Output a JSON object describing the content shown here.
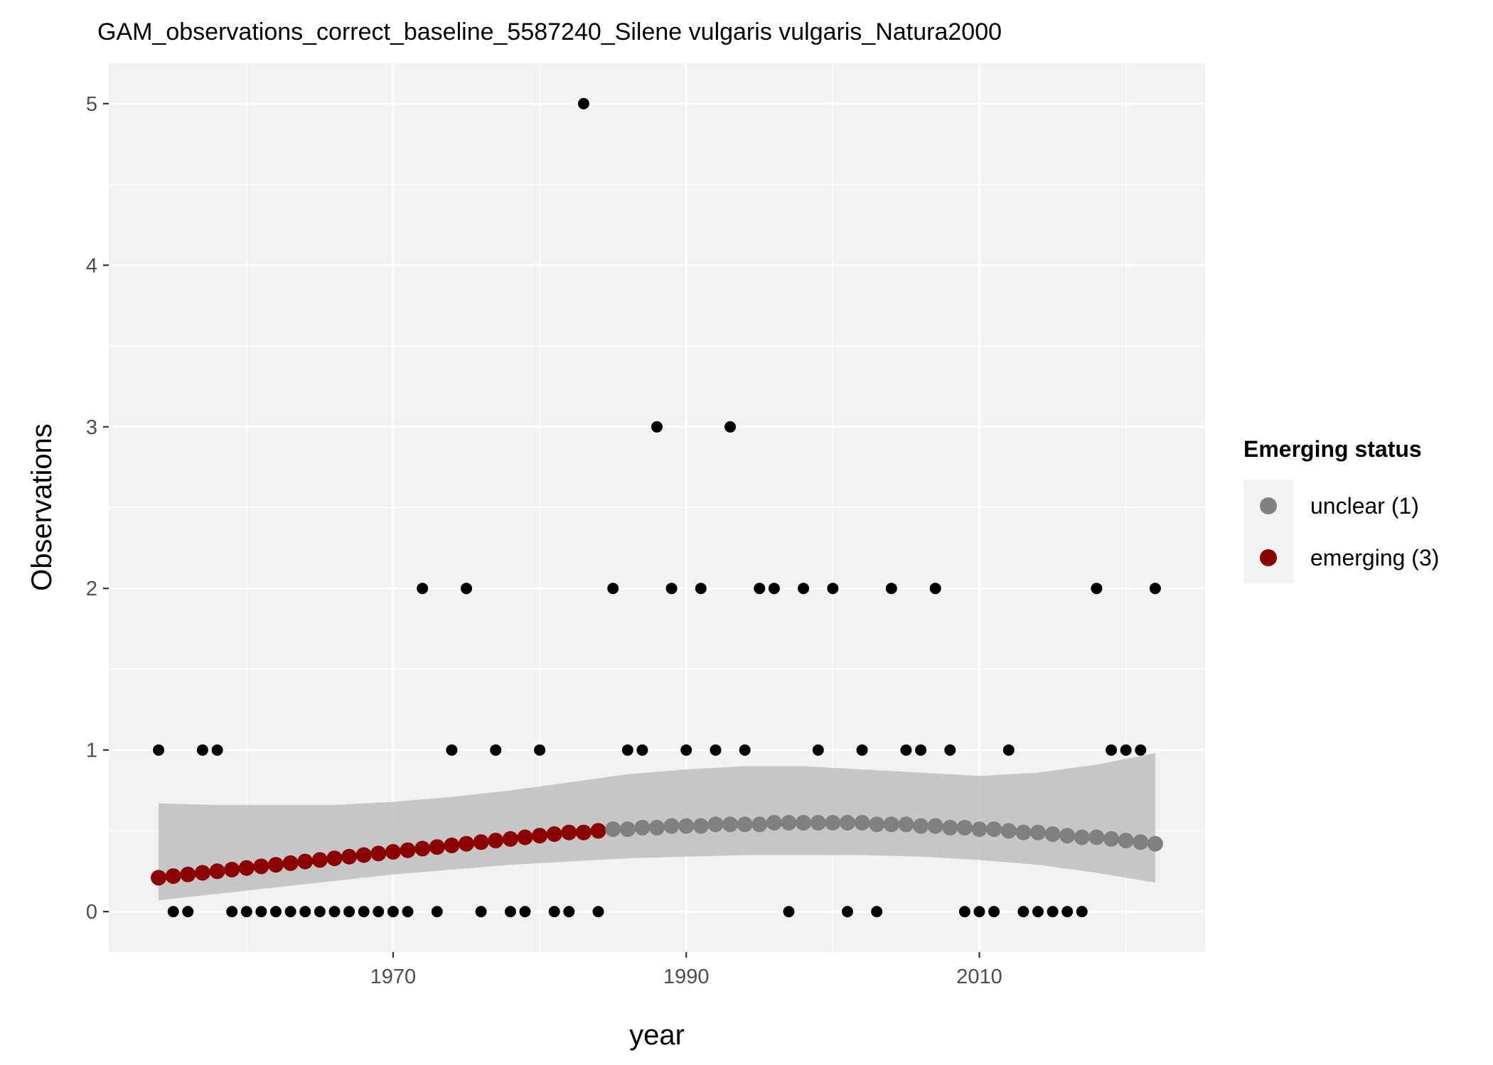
{
  "chart_data": {
    "type": "scatter",
    "title": "GAM_observations_correct_baseline_5587240_Silene vulgaris vulgaris_Natura2000",
    "xlabel": "year",
    "ylabel": "Observations",
    "xlim": [
      1950.6,
      2025.4
    ],
    "ylim": [
      -0.25,
      5.25
    ],
    "x_ticks": [
      1970,
      1990,
      2010
    ],
    "x_tick_labels": [
      "1970",
      "1990",
      "2010"
    ],
    "y_ticks": [
      0,
      1,
      2,
      3,
      4,
      5
    ],
    "y_tick_labels": [
      "0",
      "1",
      "2",
      "3",
      "4",
      "5"
    ],
    "grid": true,
    "legend": {
      "title": "Emerging status",
      "position": "right",
      "entries": [
        {
          "label": "unclear (1)",
          "color": "#808080"
        },
        {
          "label": "emerging (3)",
          "color": "#8b0000"
        }
      ]
    },
    "colors": {
      "panel_background": "#f2f2f2",
      "grid_line": "#ffffff",
      "observed_point": "#000000",
      "ribbon": "#bebebe",
      "unclear": "#808080",
      "emerging": "#8b0000"
    },
    "observations": {
      "x": [
        1954,
        1955,
        1956,
        1957,
        1958,
        1959,
        1960,
        1961,
        1962,
        1963,
        1964,
        1965,
        1966,
        1967,
        1968,
        1969,
        1970,
        1971,
        1972,
        1973,
        1974,
        1975,
        1976,
        1977,
        1978,
        1979,
        1980,
        1981,
        1982,
        1983,
        1984,
        1985,
        1986,
        1987,
        1988,
        1989,
        1990,
        1991,
        1992,
        1993,
        1994,
        1995,
        1996,
        1997,
        1998,
        1999,
        2000,
        2001,
        2002,
        2003,
        2004,
        2005,
        2006,
        2007,
        2008,
        2009,
        2010,
        2011,
        2012,
        2013,
        2014,
        2015,
        2016,
        2017,
        2018,
        2019,
        2020,
        2021,
        2022
      ],
      "y": [
        1,
        0,
        0,
        1,
        1,
        0,
        0,
        0,
        0,
        0,
        0,
        0,
        0,
        0,
        0,
        0,
        0,
        0,
        2,
        0,
        1,
        2,
        0,
        1,
        0,
        0,
        1,
        0,
        0,
        5,
        0,
        2,
        1,
        1,
        3,
        2,
        1,
        2,
        1,
        3,
        1,
        2,
        2,
        0,
        2,
        1,
        2,
        0,
        1,
        0,
        2,
        1,
        1,
        2,
        1,
        0,
        0,
        0,
        1,
        0,
        0,
        0,
        0,
        0,
        2,
        1,
        1,
        1,
        2
      ]
    },
    "fit": {
      "x": [
        1954,
        1955,
        1956,
        1957,
        1958,
        1959,
        1960,
        1961,
        1962,
        1963,
        1964,
        1965,
        1966,
        1967,
        1968,
        1969,
        1970,
        1971,
        1972,
        1973,
        1974,
        1975,
        1976,
        1977,
        1978,
        1979,
        1980,
        1981,
        1982,
        1983,
        1984,
        1985,
        1986,
        1987,
        1988,
        1989,
        1990,
        1991,
        1992,
        1993,
        1994,
        1995,
        1996,
        1997,
        1998,
        1999,
        2000,
        2001,
        2002,
        2003,
        2004,
        2005,
        2006,
        2007,
        2008,
        2009,
        2010,
        2011,
        2012,
        2013,
        2014,
        2015,
        2016,
        2017,
        2018,
        2019,
        2020,
        2021,
        2022
      ],
      "y": [
        0.21,
        0.22,
        0.23,
        0.24,
        0.25,
        0.26,
        0.27,
        0.28,
        0.29,
        0.3,
        0.31,
        0.32,
        0.33,
        0.34,
        0.35,
        0.36,
        0.37,
        0.38,
        0.39,
        0.4,
        0.41,
        0.42,
        0.43,
        0.44,
        0.45,
        0.46,
        0.47,
        0.48,
        0.49,
        0.49,
        0.5,
        0.51,
        0.51,
        0.52,
        0.52,
        0.53,
        0.53,
        0.53,
        0.54,
        0.54,
        0.54,
        0.54,
        0.55,
        0.55,
        0.55,
        0.55,
        0.55,
        0.55,
        0.55,
        0.54,
        0.54,
        0.54,
        0.53,
        0.53,
        0.52,
        0.52,
        0.51,
        0.51,
        0.5,
        0.49,
        0.49,
        0.48,
        0.47,
        0.46,
        0.46,
        0.45,
        0.44,
        0.43,
        0.42
      ],
      "status": [
        "emerging",
        "emerging",
        "emerging",
        "emerging",
        "emerging",
        "emerging",
        "emerging",
        "emerging",
        "emerging",
        "emerging",
        "emerging",
        "emerging",
        "emerging",
        "emerging",
        "emerging",
        "emerging",
        "emerging",
        "emerging",
        "emerging",
        "emerging",
        "emerging",
        "emerging",
        "emerging",
        "emerging",
        "emerging",
        "emerging",
        "emerging",
        "emerging",
        "emerging",
        "emerging",
        "emerging",
        "unclear",
        "unclear",
        "unclear",
        "unclear",
        "unclear",
        "unclear",
        "unclear",
        "unclear",
        "unclear",
        "unclear",
        "unclear",
        "unclear",
        "unclear",
        "unclear",
        "unclear",
        "unclear",
        "unclear",
        "unclear",
        "unclear",
        "unclear",
        "unclear",
        "unclear",
        "unclear",
        "unclear",
        "unclear",
        "unclear",
        "unclear",
        "unclear",
        "unclear",
        "unclear",
        "unclear",
        "unclear",
        "unclear",
        "unclear",
        "unclear",
        "unclear",
        "unclear",
        "unclear"
      ]
    },
    "ribbon": {
      "x": [
        1954,
        1958,
        1962,
        1966,
        1970,
        1974,
        1978,
        1982,
        1986,
        1990,
        1994,
        1998,
        2002,
        2006,
        2010,
        2014,
        2018,
        2022
      ],
      "lower": [
        0.07,
        0.11,
        0.15,
        0.19,
        0.23,
        0.26,
        0.29,
        0.31,
        0.33,
        0.34,
        0.35,
        0.35,
        0.35,
        0.34,
        0.32,
        0.29,
        0.24,
        0.18
      ],
      "upper": [
        0.67,
        0.66,
        0.66,
        0.66,
        0.68,
        0.71,
        0.75,
        0.8,
        0.85,
        0.88,
        0.9,
        0.9,
        0.88,
        0.86,
        0.84,
        0.86,
        0.91,
        0.98
      ]
    }
  }
}
